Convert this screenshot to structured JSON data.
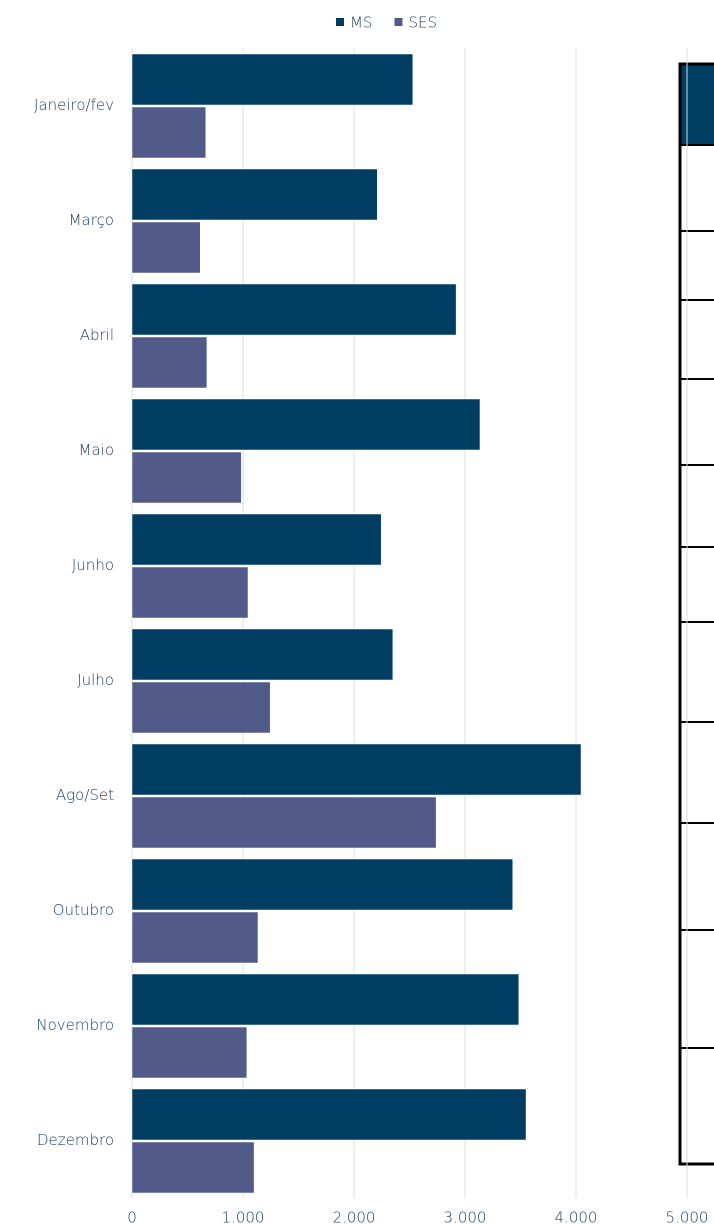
{
  "chart_data": {
    "type": "barh",
    "categories": [
      "Janeiro/fev",
      "Março",
      "Abril",
      "Maio",
      "Junho",
      "Julho",
      "Ago/Set",
      "Outubro",
      "Novembro",
      "Dezembro"
    ],
    "series": [
      {
        "name": "MS",
        "color": "#003d63",
        "values": [
          2530,
          2210,
          2920,
          3135,
          2245,
          2350,
          4045,
          3430,
          3485,
          3550
        ]
      },
      {
        "name": "SES",
        "color": "#525a8a",
        "values": [
          665,
          615,
          675,
          985,
          1045,
          1245,
          2740,
          1135,
          1035,
          1100
        ]
      }
    ],
    "xlim": [
      0,
      5000
    ],
    "xticks": [
      0,
      {
        "value": 1000,
        "label": "1.000"
      },
      {
        "value": 2000,
        "label": "2.000"
      },
      {
        "value": 3000,
        "label": "3.000"
      },
      {
        "value": 4000,
        "label": "4.000"
      },
      {
        "value": 5000,
        "label": "5.000"
      }
    ],
    "grid": true,
    "legend": "top"
  }
}
